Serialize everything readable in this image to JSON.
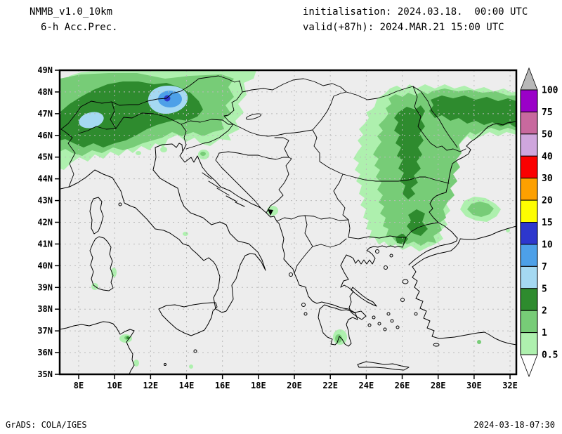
{
  "header": {
    "model": "NMMB_v1.0_10km",
    "product": "6-h Acc.Prec.",
    "init": "initialisation: 2024.03.18.  00:00 UTC",
    "valid": "valid(+87h): 2024.MAR.21 15:00 UTC"
  },
  "axes": {
    "lat_labels": [
      "49N",
      "48N",
      "47N",
      "46N",
      "45N",
      "44N",
      "43N",
      "42N",
      "41N",
      "40N",
      "39N",
      "38N",
      "37N",
      "36N",
      "35N"
    ],
    "lon_labels": [
      "8E",
      "10E",
      "12E",
      "14E",
      "16E",
      "18E",
      "20E",
      "22E",
      "24E",
      "26E",
      "28E",
      "30E",
      "32E"
    ]
  },
  "colorbar": {
    "labels": [
      "100",
      "75",
      "50",
      "40",
      "30",
      "20",
      "15",
      "10",
      "7",
      "5",
      "2",
      "1",
      "0.5"
    ],
    "colors_top_down": [
      "#9a00c8",
      "#c8699e",
      "#cfa6dd",
      "#fb0000",
      "#fda000",
      "#fdfd00",
      "#2d37cd",
      "#4da0e8",
      "#a5d9f2",
      "#2e8b2e",
      "#77cc77",
      "#aef0ae"
    ],
    "arrow_top_color": "#b8b8b8",
    "arrow_bottom_color": "#ffffff"
  },
  "palette": {
    "lg": "#aef0ae",
    "mg": "#77cc77",
    "dg": "#2e8b2e",
    "lb": "#a5d9f2",
    "mb": "#4da0e8",
    "nb": "#2d37cd"
  },
  "map": {
    "background": "#ededed",
    "gridline_color": "#b9b9b9",
    "coast_color": "#000000"
  },
  "footer": {
    "left": "GrADS: COLA/IGES",
    "right": "2024-03-18-07:30"
  }
}
